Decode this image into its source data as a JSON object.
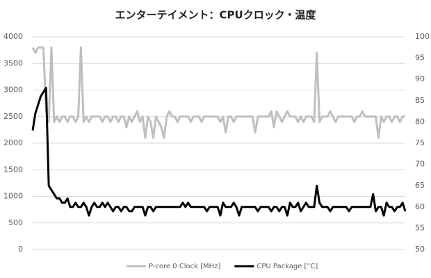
{
  "chart_data": {
    "type": "line",
    "title": "エンターテイメント：CPUクロック・温度",
    "ylim": [
      0,
      4000
    ],
    "yticks": [
      0,
      500,
      1000,
      1500,
      2000,
      2500,
      3000,
      3500,
      4000
    ],
    "y2lim": [
      50,
      100
    ],
    "y2ticks": [
      50,
      55,
      60,
      65,
      70,
      75,
      80,
      85,
      90,
      95,
      100
    ],
    "grid": true,
    "legend": "bottom",
    "series": [
      {
        "name": "P-core 0 Clock [MHz]",
        "color": "#bfbfbf",
        "values": [
          3800,
          3700,
          3800,
          3800,
          3800,
          2600,
          2400,
          3800,
          2400,
          2500,
          2400,
          2500,
          2500,
          2400,
          2500,
          2500,
          2400,
          2500,
          3800,
          2400,
          2500,
          2400,
          2500,
          2500,
          2500,
          2500,
          2400,
          2500,
          2500,
          2400,
          2500,
          2500,
          2400,
          2500,
          2500,
          2300,
          2500,
          2400,
          2500,
          2600,
          2400,
          2500,
          2100,
          2500,
          2400,
          2100,
          2500,
          2400,
          2300,
          2100,
          2500,
          2600,
          2500,
          2500,
          2400,
          2500,
          2500,
          2500,
          2500,
          2400,
          2500,
          2500,
          2500,
          2400,
          2500,
          2500,
          2500,
          2500,
          2500,
          2500,
          2400,
          2500,
          2200,
          2500,
          2500,
          2400,
          2500,
          2500,
          2500,
          2500,
          2500,
          2500,
          2500,
          2200,
          2500,
          2500,
          2500,
          2500,
          2500,
          2600,
          2300,
          2600,
          2500,
          2400,
          2500,
          2600,
          2500,
          2500,
          2500,
          2400,
          2500,
          2400,
          2500,
          2500,
          2500,
          2400,
          3700,
          2400,
          2500,
          2500,
          2500,
          2600,
          2500,
          2400,
          2500,
          2500,
          2500,
          2500,
          2500,
          2500,
          2400,
          2500,
          2500,
          2600,
          2500,
          2500,
          2500,
          2500,
          2500,
          2100,
          2500,
          2400,
          2500,
          2500,
          2400,
          2500,
          2500,
          2400,
          2500,
          2500
        ]
      },
      {
        "name": "CPU Package [°C]",
        "color": "#000000",
        "axis": "y2",
        "values": [
          78,
          82,
          84,
          86,
          87,
          88,
          65,
          64,
          63,
          62,
          62,
          61,
          61,
          62,
          60,
          60,
          61,
          60,
          60,
          61,
          60,
          58,
          60,
          61,
          60,
          60,
          61,
          60,
          61,
          60,
          59,
          60,
          60,
          59,
          60,
          60,
          59,
          59,
          60,
          60,
          60,
          60,
          58,
          60,
          60,
          59,
          60,
          60,
          60,
          60,
          60,
          60,
          60,
          60,
          60,
          60,
          61,
          60,
          61,
          60,
          60,
          60,
          60,
          60,
          60,
          59,
          60,
          60,
          60,
          60,
          58,
          61,
          60,
          60,
          60,
          61,
          60,
          58,
          60,
          60,
          60,
          60,
          60,
          60,
          59,
          60,
          60,
          60,
          60,
          59,
          60,
          60,
          59,
          60,
          60,
          58,
          61,
          60,
          60,
          61,
          59,
          60,
          61,
          60,
          60,
          60,
          65,
          61,
          60,
          60,
          60,
          59,
          60,
          60,
          60,
          60,
          60,
          60,
          59,
          60,
          60,
          60,
          60,
          60,
          60,
          60,
          60,
          63,
          59,
          60,
          60,
          58,
          61,
          60,
          60,
          59,
          60,
          60,
          61,
          59
        ]
      }
    ]
  }
}
